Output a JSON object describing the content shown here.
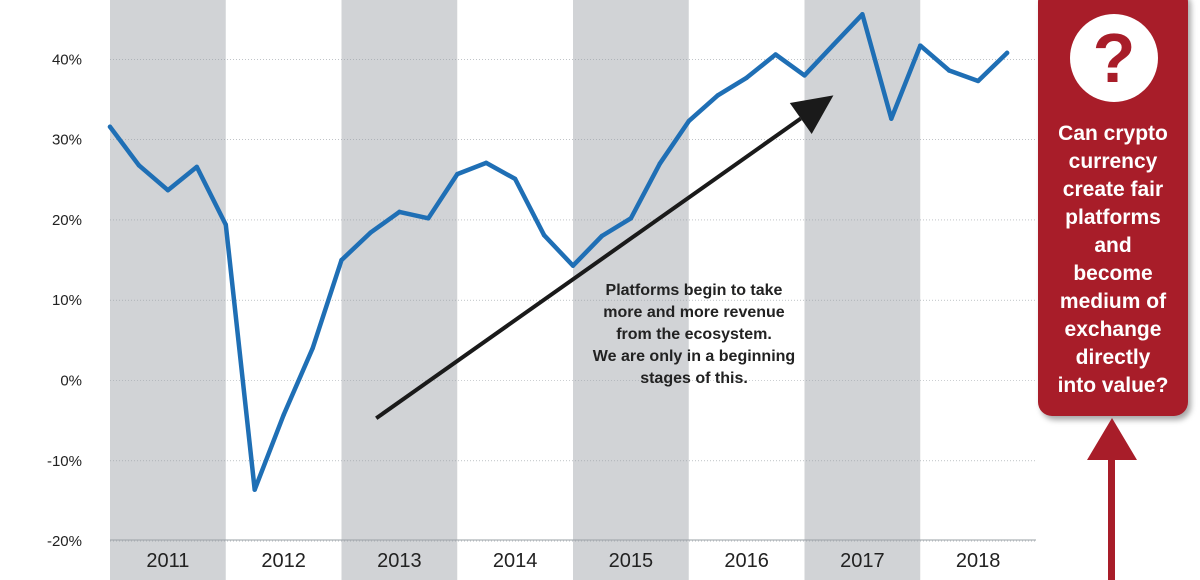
{
  "chart_data": {
    "type": "line",
    "title": "",
    "xlabel": "",
    "ylabel": "",
    "ylim": [
      -20,
      46
    ],
    "yticks": [
      "40%",
      "30%",
      "20%",
      "10%",
      "0%",
      "-10%",
      "-20%"
    ],
    "ytick_values": [
      40,
      30,
      20,
      10,
      0,
      -10,
      -20
    ],
    "year_labels": [
      "2011",
      "2012",
      "2013",
      "2014",
      "2015",
      "2016",
      "2017",
      "2018"
    ],
    "shaded_years": [
      "2011",
      "2013",
      "2015",
      "2017"
    ],
    "grid": "horizontal",
    "series": [
      {
        "color": "#1f6fb5",
        "x": [
          2011.0,
          2011.25,
          2011.5,
          2011.75,
          2012.0,
          2012.25,
          2012.5,
          2012.75,
          2013.0,
          2013.25,
          2013.5,
          2013.75,
          2014.0,
          2014.25,
          2014.5,
          2014.75,
          2015.0,
          2015.25,
          2015.5,
          2015.75,
          2016.0,
          2016.25,
          2016.5,
          2016.75,
          2017.0,
          2017.25,
          2017.5,
          2017.75,
          2018.0,
          2018.25,
          2018.5,
          2018.75
        ],
        "values": [
          31.6,
          26.8,
          23.7,
          26.6,
          19.4,
          -13.6,
          -4.3,
          4.0,
          15.0,
          18.4,
          21.0,
          20.2,
          25.7,
          27.1,
          25.1,
          18.1,
          14.3,
          18.0,
          20.2,
          27.0,
          32.3,
          35.5,
          37.7,
          40.6,
          38.0,
          41.8,
          45.6,
          32.6,
          41.7,
          38.6,
          37.3,
          40.8
        ]
      }
    ],
    "annotation": {
      "lines": [
        "Platforms begin to take",
        "more and more revenue",
        "from the ecosystem.",
        "We are only in a beginning",
        "stages of this."
      ],
      "arrow_from": [
        2013.3,
        -4.7
      ],
      "arrow_to": [
        2017.25,
        35.5
      ]
    }
  },
  "side_panel": {
    "icon": "question-mark-icon",
    "icon_glyph": "?",
    "text": "Can crypto\ncurrency\ncreate fair\nplatforms\nand\nbecome\nmedium of\nexchange\ndirectly\ninto value?",
    "color": "#a81d29"
  },
  "colors": {
    "band": "#d1d3d6",
    "line": "#1f6fb5",
    "arrow": "#1a1a1a",
    "panel": "#a81d29"
  }
}
